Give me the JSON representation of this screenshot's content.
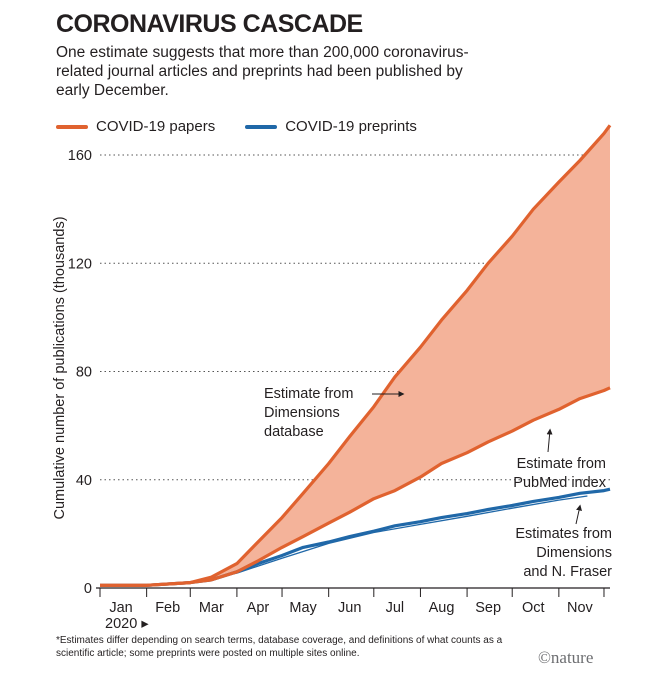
{
  "title": "CORONAVIRUS CASCADE",
  "subtitle": "One estimate suggests that more than 200,000 coronavirus-related journal articles and preprints had been published by early December.",
  "legend": [
    {
      "label": "COVID-19 papers",
      "color": "#e0622f"
    },
    {
      "label": "COVID-19 preprints",
      "color": "#2068a8"
    }
  ],
  "footnote": "*Estimates differ depending on search terms, database coverage, and definitions of what counts as a scientific article; some preprints were posted on multiple sites online.",
  "brand": "©nature",
  "colors": {
    "papers": "#e0622f",
    "preprints": "#2068a8",
    "band": "#f4b39a",
    "grid": "#555555"
  },
  "annotations": {
    "dimensions": [
      "Estimate from",
      "Dimensions",
      "database"
    ],
    "pubmed": [
      "Estimate from",
      "PubMed index"
    ],
    "preprints": [
      "Estimates from",
      "Dimensions",
      "and N. Fraser"
    ]
  },
  "chart_data": {
    "type": "area",
    "ylabel": "Cumulative number of publications (thousands)",
    "year_label": "2020 ▸",
    "ylim": [
      0,
      170
    ],
    "yticks": [
      0,
      40,
      80,
      120,
      160
    ],
    "grid": true,
    "x_domain": [
      "2020-01-01",
      "2020-12-05"
    ],
    "xticks": [
      "Jan",
      "Feb",
      "Mar",
      "Apr",
      "May",
      "Jun",
      "Jul",
      "Aug",
      "Sep",
      "Oct",
      "Nov"
    ],
    "series": [
      {
        "name": "COVID-19 papers",
        "note": "Estimate from Dimensions database",
        "x": [
          "2020-01-01",
          "2020-02-01",
          "2020-03-01",
          "2020-03-15",
          "2020-04-01",
          "2020-04-15",
          "2020-05-01",
          "2020-05-15",
          "2020-06-01",
          "2020-06-15",
          "2020-07-01",
          "2020-07-15",
          "2020-08-01",
          "2020-08-15",
          "2020-09-01",
          "2020-09-15",
          "2020-10-01",
          "2020-10-15",
          "2020-11-01",
          "2020-11-15",
          "2020-12-01",
          "2020-12-05"
        ],
        "y": [
          1,
          1,
          2,
          4,
          9,
          17,
          26,
          35,
          46,
          56,
          67,
          78,
          89,
          99,
          110,
          120,
          130,
          140,
          150,
          158,
          168,
          171
        ]
      },
      {
        "name": "COVID-19 papers",
        "note": "Estimate from PubMed index",
        "x": [
          "2020-01-01",
          "2020-02-01",
          "2020-03-01",
          "2020-03-15",
          "2020-04-01",
          "2020-04-15",
          "2020-05-01",
          "2020-05-15",
          "2020-06-01",
          "2020-06-15",
          "2020-07-01",
          "2020-07-15",
          "2020-08-01",
          "2020-08-15",
          "2020-09-01",
          "2020-09-15",
          "2020-10-01",
          "2020-10-15",
          "2020-11-01",
          "2020-11-15",
          "2020-12-01",
          "2020-12-05"
        ],
        "y": [
          1,
          1,
          2,
          3,
          6,
          10,
          15,
          19,
          24,
          28,
          33,
          36,
          41,
          46,
          50,
          54,
          58,
          62,
          66,
          70,
          73,
          74
        ]
      },
      {
        "name": "COVID-19 preprints",
        "note": "Estimates from Dimensions and N. Fraser",
        "x": [
          "2020-01-01",
          "2020-02-01",
          "2020-03-01",
          "2020-03-15",
          "2020-04-01",
          "2020-04-15",
          "2020-05-01",
          "2020-05-15",
          "2020-06-01",
          "2020-06-15",
          "2020-07-01",
          "2020-07-15",
          "2020-08-01",
          "2020-08-15",
          "2020-09-01",
          "2020-09-15",
          "2020-10-01",
          "2020-10-15",
          "2020-11-01",
          "2020-11-15",
          "2020-12-01",
          "2020-12-05"
        ],
        "y": [
          1,
          1,
          2,
          3,
          6,
          9,
          12,
          15,
          17,
          19,
          21,
          23,
          24.5,
          26,
          27.5,
          29,
          30.5,
          32,
          33.5,
          35,
          36,
          36.5
        ]
      },
      {
        "name": "COVID-19 preprints",
        "note": "Estimates from Dimensions and N. Fraser (second estimate)",
        "x": [
          "2020-01-01",
          "2020-02-01",
          "2020-03-01",
          "2020-04-01",
          "2020-05-01",
          "2020-06-01",
          "2020-07-01",
          "2020-08-01",
          "2020-09-01",
          "2020-10-01",
          "2020-11-01",
          "2020-11-20"
        ],
        "y": [
          1,
          1,
          2,
          5.5,
          11,
          16.5,
          20.5,
          23.5,
          26.5,
          29.5,
          32.5,
          34
        ]
      }
    ]
  }
}
